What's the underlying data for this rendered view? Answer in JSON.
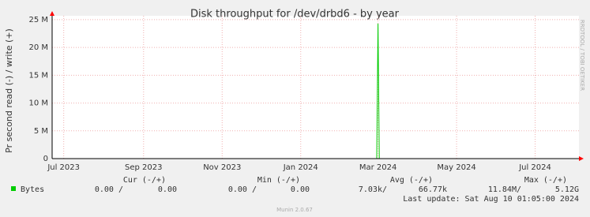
{
  "chart_data": {
    "type": "line",
    "title": "Disk throughput for /dev/drbd6 - by year",
    "y_label": "Pr second read (-) / write (+)",
    "side_label": "RRDTOOL / TOBI OETIKER",
    "x": [
      "2023-06-22",
      "2024-02-29",
      "2024-03-01",
      "2024-03-02",
      "2024-08-04"
    ],
    "series": [
      {
        "name": "Bytes",
        "color": "#00cc00",
        "values": [
          0,
          0,
          24300000,
          0,
          0
        ]
      }
    ],
    "xlim": [
      "2023-06-22",
      "2024-08-04"
    ],
    "xticks": [
      {
        "value": "2023-07-01",
        "label": "Jul 2023"
      },
      {
        "value": "2023-09-01",
        "label": "Sep 2023"
      },
      {
        "value": "2023-11-01",
        "label": "Nov 2023"
      },
      {
        "value": "2024-01-01",
        "label": "Jan 2024"
      },
      {
        "value": "2024-03-01",
        "label": "Mar 2024"
      },
      {
        "value": "2024-05-01",
        "label": "May 2024"
      },
      {
        "value": "2024-07-01",
        "label": "Jul 2024"
      }
    ],
    "ylim": [
      0,
      25700000
    ],
    "yticks": [
      0,
      {
        "value": 5000000,
        "label": "5 M"
      },
      {
        "value": 10000000,
        "label": "10 M"
      },
      {
        "value": 15000000,
        "label": "15 M"
      },
      {
        "value": 20000000,
        "label": "20 M"
      },
      {
        "value": 25000000,
        "label": "25 M"
      }
    ],
    "grid": true,
    "legend": {
      "headers": [
        "Cur (-/+)",
        "Min (-/+)",
        "Avg (-/+)",
        "Max (-/+)"
      ],
      "row": [
        "0.00 /",
        "0.00",
        "0.00 /",
        "0.00",
        "7.03k/",
        "66.77k",
        "11.84M/",
        "5.12G"
      ],
      "last_update": "Last update: Sat Aug 10 01:05:00 2024"
    },
    "footer": "Munin 2.0.67"
  }
}
